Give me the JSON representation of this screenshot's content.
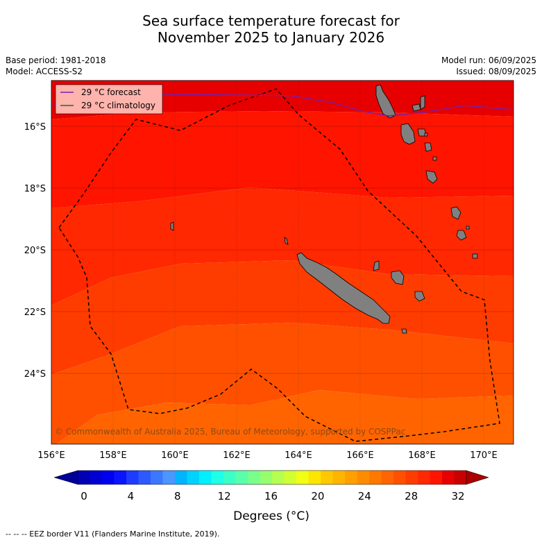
{
  "title_line1": "Sea surface temperature forecast for",
  "title_line2": "November 2025 to January 2026",
  "base_period": "Base period: 1981-2018",
  "model": "Model: ACCESS-S2",
  "model_run": "Model run: 06/09/2025",
  "issued": "Issued: 08/09/2025",
  "legend": {
    "forecast": "29 °C  forecast",
    "climatology": "29 °C  climatology",
    "forecast_color": "#7a1fa8",
    "climatology_color": "#0a7a1a"
  },
  "copyright": "© Commonwealth of Australia 2025, Bureau of Meteorology, supported by COSPPac",
  "x_ticks": [
    "156°E",
    "158°E",
    "160°E",
    "162°E",
    "164°E",
    "166°E",
    "168°E",
    "170°E"
  ],
  "y_ticks": [
    "16°S",
    "18°S",
    "20°S",
    "22°S",
    "24°S"
  ],
  "colorbar": {
    "ticks": [
      "0",
      "4",
      "8",
      "12",
      "16",
      "20",
      "24",
      "28",
      "32"
    ],
    "label": "Degrees (°C)",
    "colors": [
      "#000096",
      "#0000b4",
      "#0000d2",
      "#0000f0",
      "#0a14ff",
      "#1e3cff",
      "#2d5aff",
      "#3c78ff",
      "#4b96ff",
      "#00b4ff",
      "#00d2ff",
      "#00f0ff",
      "#1effe6",
      "#3cffc8",
      "#5affaa",
      "#78ff8c",
      "#96ff6e",
      "#b4ff50",
      "#d2ff32",
      "#f0ff14",
      "#ffe600",
      "#ffc800",
      "#ffb400",
      "#ffa000",
      "#ff8c00",
      "#ff7800",
      "#ff6400",
      "#ff5000",
      "#ff3c00",
      "#ff2800",
      "#ff1400",
      "#e60000",
      "#c80000",
      "#aa0000"
    ]
  },
  "temperature_bands_north_to_south": [
    "#e60000",
    "#ff1400",
    "#ff2800",
    "#ff3c00",
    "#ff5000",
    "#ff6400",
    "#ff7800",
    "#ff8c00"
  ],
  "footer": "--  --  -- EEZ border V11 (Flanders Marine Institute, 2019)."
}
